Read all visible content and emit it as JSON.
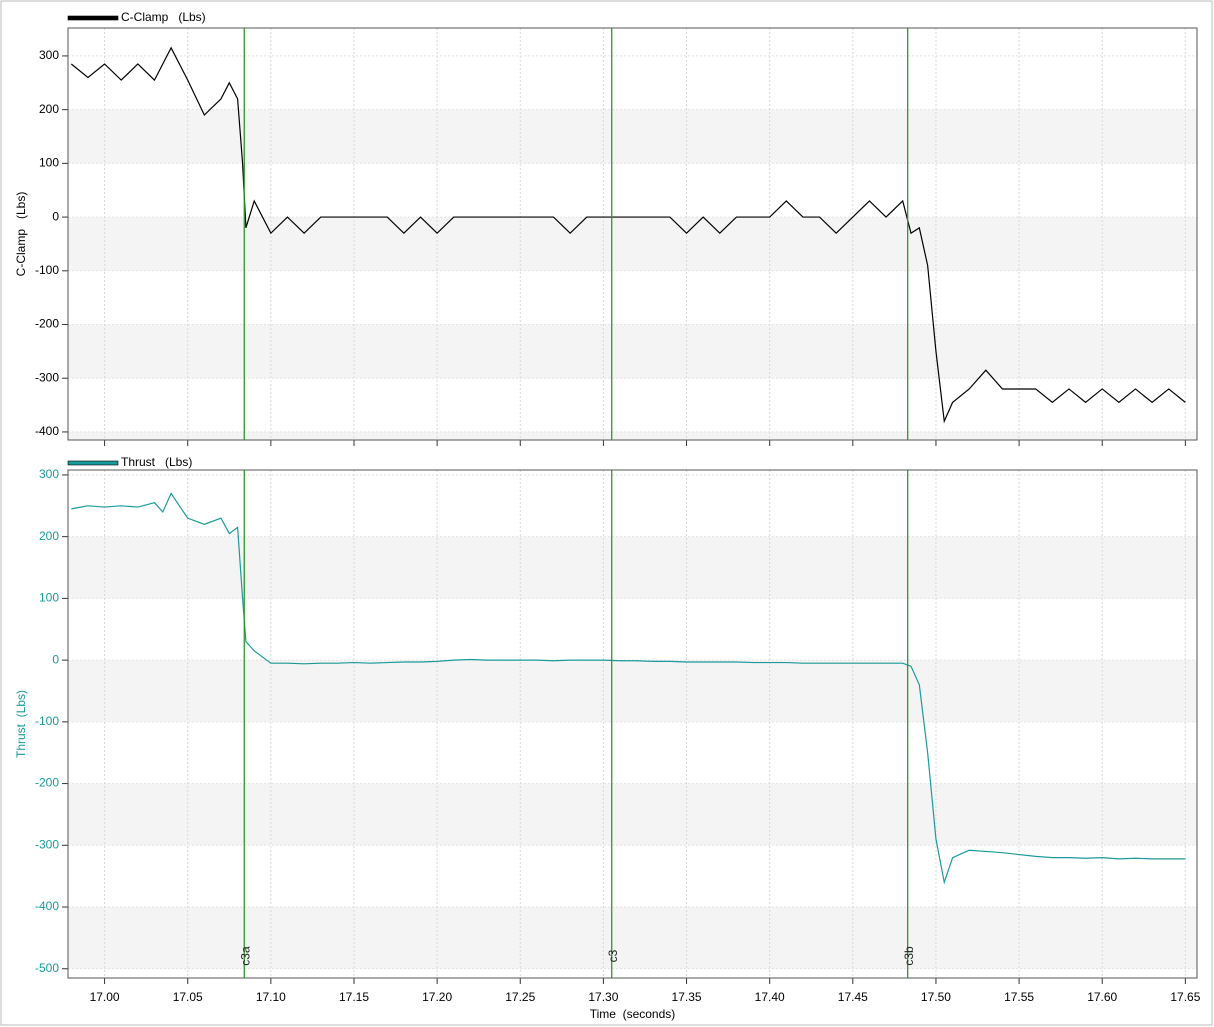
{
  "chart_data": [
    {
      "type": "line",
      "ylabel": "C-Clamp   (Lbs)",
      "x": [
        16.98,
        16.99,
        17.0,
        17.01,
        17.02,
        17.03,
        17.035,
        17.04,
        17.05,
        17.06,
        17.07,
        17.075,
        17.08,
        17.083,
        17.085,
        17.09,
        17.1,
        17.11,
        17.12,
        17.13,
        17.14,
        17.15,
        17.16,
        17.17,
        17.18,
        17.19,
        17.2,
        17.21,
        17.22,
        17.23,
        17.24,
        17.25,
        17.26,
        17.27,
        17.28,
        17.29,
        17.3,
        17.31,
        17.32,
        17.33,
        17.34,
        17.35,
        17.36,
        17.37,
        17.38,
        17.39,
        17.4,
        17.41,
        17.42,
        17.43,
        17.44,
        17.45,
        17.46,
        17.47,
        17.48,
        17.485,
        17.49,
        17.495,
        17.5,
        17.505,
        17.51,
        17.52,
        17.53,
        17.54,
        17.55,
        17.56,
        17.57,
        17.58,
        17.59,
        17.6,
        17.61,
        17.62,
        17.63,
        17.64,
        17.65
      ],
      "series": [
        {
          "name": "C-Clamp   (Lbs)",
          "color": "#000000",
          "values": [
            285,
            260,
            285,
            255,
            285,
            255,
            285,
            315,
            255,
            190,
            220,
            250,
            220,
            100,
            -20,
            30,
            -30,
            0,
            -30,
            0,
            0,
            0,
            0,
            0,
            -30,
            0,
            -30,
            0,
            0,
            0,
            0,
            0,
            0,
            0,
            -30,
            0,
            0,
            0,
            0,
            0,
            0,
            -30,
            0,
            -30,
            0,
            0,
            0,
            30,
            0,
            0,
            -30,
            0,
            30,
            0,
            30,
            -30,
            -20,
            -90,
            -250,
            -380,
            -345,
            -320,
            -285,
            -320,
            -320,
            -320,
            -345,
            -320,
            -345,
            -320,
            -345,
            -320,
            -345,
            -320,
            -345
          ]
        }
      ],
      "xlim": [
        16.978,
        17.657
      ],
      "ylim": [
        -415,
        352
      ],
      "yticks": [
        300,
        200,
        100,
        0,
        -100,
        -200,
        -300,
        -400
      ],
      "grid": true
    },
    {
      "type": "line",
      "ylabel": "Thrust  (Lbs)",
      "xlabel": "Time  (seconds)",
      "x": [
        16.98,
        16.99,
        17.0,
        17.01,
        17.02,
        17.03,
        17.035,
        17.04,
        17.05,
        17.06,
        17.07,
        17.075,
        17.08,
        17.083,
        17.085,
        17.09,
        17.1,
        17.11,
        17.12,
        17.13,
        17.14,
        17.15,
        17.16,
        17.17,
        17.18,
        17.19,
        17.2,
        17.21,
        17.22,
        17.23,
        17.24,
        17.25,
        17.26,
        17.27,
        17.28,
        17.29,
        17.3,
        17.31,
        17.32,
        17.33,
        17.34,
        17.35,
        17.36,
        17.37,
        17.38,
        17.39,
        17.4,
        17.41,
        17.42,
        17.43,
        17.44,
        17.45,
        17.46,
        17.47,
        17.48,
        17.485,
        17.49,
        17.495,
        17.5,
        17.505,
        17.51,
        17.52,
        17.53,
        17.54,
        17.55,
        17.56,
        17.57,
        17.58,
        17.59,
        17.6,
        17.61,
        17.62,
        17.63,
        17.64,
        17.65
      ],
      "series": [
        {
          "name": "Thrust   (Lbs)",
          "color": "#1a9a9a",
          "values": [
            245,
            250,
            248,
            250,
            248,
            255,
            240,
            270,
            230,
            220,
            230,
            205,
            215,
            100,
            30,
            15,
            -5,
            -5,
            -6,
            -5,
            -5,
            -4,
            -5,
            -4,
            -3,
            -3,
            -2,
            0,
            1,
            0,
            0,
            0,
            0,
            -1,
            0,
            0,
            0,
            -1,
            -1,
            -2,
            -2,
            -3,
            -3,
            -3,
            -3,
            -4,
            -4,
            -4,
            -5,
            -5,
            -5,
            -5,
            -5,
            -5,
            -5,
            -10,
            -40,
            -150,
            -290,
            -360,
            -320,
            -308,
            -310,
            -312,
            -315,
            -318,
            -320,
            -320,
            -321,
            -320,
            -322,
            -321,
            -322,
            -322,
            -322
          ]
        }
      ],
      "xlim": [
        16.978,
        17.657
      ],
      "xticks": [
        {
          "value": 17.0,
          "label": "17.00"
        },
        {
          "value": 17.05,
          "label": "17.05"
        },
        {
          "value": 17.1,
          "label": "17.10"
        },
        {
          "value": 17.15,
          "label": "17.15"
        },
        {
          "value": 17.2,
          "label": "17.20"
        },
        {
          "value": 17.25,
          "label": "17.25"
        },
        {
          "value": 17.3,
          "label": "17.30"
        },
        {
          "value": 17.35,
          "label": "17.35"
        },
        {
          "value": 17.4,
          "label": "17.40"
        },
        {
          "value": 17.45,
          "label": "17.45"
        },
        {
          "value": 17.5,
          "label": "17.50"
        },
        {
          "value": 17.55,
          "label": "17.55"
        },
        {
          "value": 17.6,
          "label": "17.60"
        },
        {
          "value": 17.65,
          "label": "17.65"
        }
      ],
      "ylim": [
        -515,
        308
      ],
      "yticks": [
        300,
        200,
        100,
        0,
        -100,
        -200,
        -300,
        -400,
        -500
      ],
      "grid": true
    }
  ],
  "cursors": [
    {
      "label": "c3a",
      "x": 17.084
    },
    {
      "label": "c3",
      "x": 17.305
    },
    {
      "label": "c3b",
      "x": 17.483
    }
  ],
  "cursor_color": "#2a9a2a"
}
